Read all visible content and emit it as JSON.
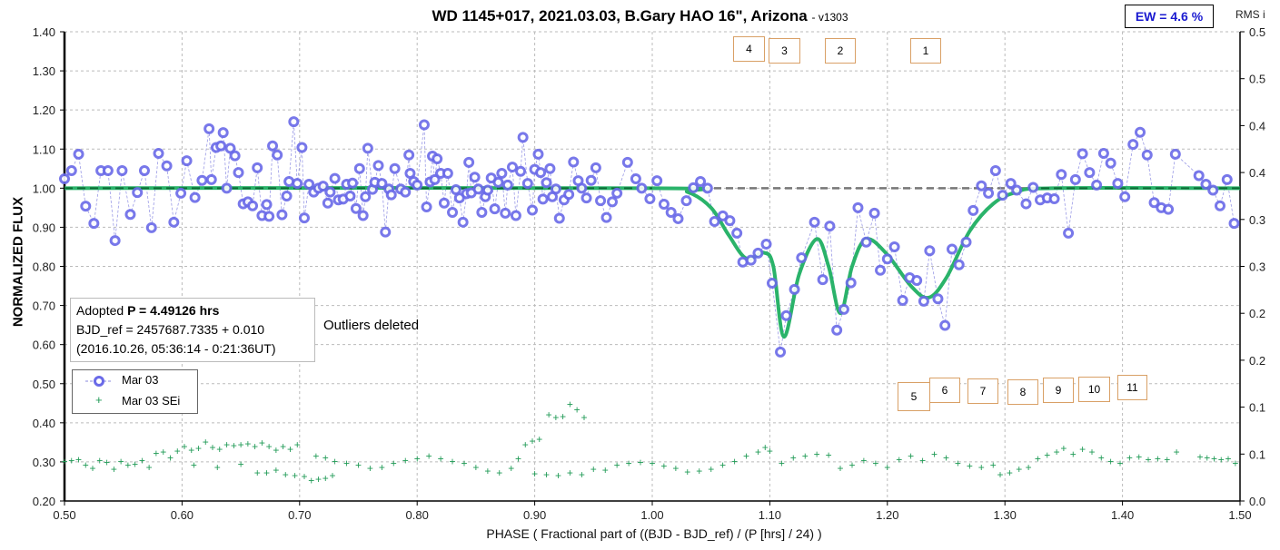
{
  "title": {
    "main": "WD 1145+017, 2021.03.03, B.Gary HAO 16\", Arizona",
    "version": "- v1303"
  },
  "ew_label": "EW = 4.6 %",
  "info": {
    "line1_prefix": "Adopted ",
    "line1_bold": "P = 4.49126 hrs",
    "line2": "BJD_ref = 2457687.7335 + 0.010",
    "line3": "(2016.10.26, 05:36:14 - 0:21:36UT)"
  },
  "outliers_note": "Outliers deleted",
  "legend": [
    {
      "label": "Mar 03"
    },
    {
      "label": "Mar 03 SEi"
    }
  ],
  "dip_labels": [
    "1",
    "2",
    "3",
    "4",
    "5",
    "6",
    "7",
    "8",
    "9",
    "10",
    "11"
  ],
  "chart_data": {
    "type": "scatter",
    "xlabel": "PHASE ( Fractional part of ((BJD - BJD_ref) / (P [hrs] / 24) )",
    "ylabel": "NORMALIZED FLUX",
    "y2label": "RMS i",
    "xlim": [
      0.5,
      1.5
    ],
    "ylim": [
      0.2,
      1.4
    ],
    "y2lim": [
      0.0,
      0.5
    ],
    "xticks": [
      "0.50",
      "0.60",
      "0.70",
      "0.80",
      "0.90",
      "1.00",
      "1.10",
      "1.20",
      "1.30",
      "1.40",
      "1.50"
    ],
    "yticks": [
      "0.20",
      "0.30",
      "0.40",
      "0.50",
      "0.60",
      "0.70",
      "0.80",
      "0.90",
      "1.00",
      "1.10",
      "1.20",
      "1.30",
      "1.40"
    ],
    "y2ticks": [
      "0.0",
      "0.1",
      "0.1",
      "0.2",
      "0.2",
      "0.3",
      "0.3",
      "0.4",
      "0.4",
      "0.5",
      "0.5"
    ],
    "grid": true,
    "colors": {
      "flux": "#6a6ae8",
      "sei": "#1f9a55",
      "fit": "#2ab36a",
      "ref": "#777777"
    },
    "reference_level": 1.0,
    "flux": [
      [
        0.5,
        1.024
      ],
      [
        0.506,
        1.045
      ],
      [
        0.512,
        1.087
      ],
      [
        0.518,
        0.954
      ],
      [
        0.525,
        0.91
      ],
      [
        0.531,
        1.045
      ],
      [
        0.537,
        1.045
      ],
      [
        0.543,
        0.866
      ],
      [
        0.549,
        1.045
      ],
      [
        0.556,
        0.933
      ],
      [
        0.562,
        0.989
      ],
      [
        0.568,
        1.045
      ],
      [
        0.574,
        0.899
      ],
      [
        0.58,
        1.089
      ],
      [
        0.587,
        1.057
      ],
      [
        0.593,
        0.913
      ],
      [
        0.599,
        0.987
      ],
      [
        0.604,
        1.07
      ],
      [
        0.611,
        0.976
      ],
      [
        0.617,
        1.02
      ],
      [
        0.623,
        1.152
      ],
      [
        0.625,
        1.022
      ],
      [
        0.629,
        1.104
      ],
      [
        0.633,
        1.108
      ],
      [
        0.635,
        1.142
      ],
      [
        0.638,
        1.0
      ],
      [
        0.641,
        1.102
      ],
      [
        0.645,
        1.083
      ],
      [
        0.648,
        1.04
      ],
      [
        0.652,
        0.96
      ],
      [
        0.656,
        0.965
      ],
      [
        0.66,
        0.955
      ],
      [
        0.664,
        1.052
      ],
      [
        0.668,
        0.93
      ],
      [
        0.672,
        0.958
      ],
      [
        0.674,
        0.928
      ],
      [
        0.677,
        1.108
      ],
      [
        0.681,
        1.085
      ],
      [
        0.685,
        0.932
      ],
      [
        0.689,
        0.98
      ],
      [
        0.691,
        1.017
      ],
      [
        0.695,
        1.17
      ],
      [
        0.698,
        1.012
      ],
      [
        0.702,
        1.104
      ],
      [
        0.704,
        0.924
      ],
      [
        0.708,
        1.01
      ],
      [
        0.712,
        0.99
      ],
      [
        0.716,
        1.0
      ],
      [
        0.72,
        1.005
      ],
      [
        0.724,
        0.962
      ],
      [
        0.726,
        0.99
      ],
      [
        0.73,
        1.025
      ],
      [
        0.733,
        0.97
      ],
      [
        0.737,
        0.972
      ],
      [
        0.74,
        1.01
      ],
      [
        0.743,
        0.98
      ],
      [
        0.745,
        1.013
      ],
      [
        0.748,
        0.948
      ],
      [
        0.751,
        1.05
      ],
      [
        0.754,
        0.93
      ],
      [
        0.756,
        0.978
      ],
      [
        0.758,
        1.102
      ],
      [
        0.762,
        0.997
      ],
      [
        0.764,
        1.015
      ],
      [
        0.767,
        1.058
      ],
      [
        0.77,
        1.012
      ],
      [
        0.773,
        0.888
      ],
      [
        0.776,
        0.998
      ],
      [
        0.778,
        0.983
      ],
      [
        0.781,
        1.05
      ],
      [
        0.786,
        0.998
      ],
      [
        0.79,
        0.99
      ],
      [
        0.793,
        1.085
      ],
      [
        0.794,
        1.038
      ],
      [
        0.797,
        1.017
      ],
      [
        0.8,
        1.008
      ],
      [
        0.806,
        1.162
      ],
      [
        0.808,
        0.952
      ],
      [
        0.811,
        1.016
      ],
      [
        0.813,
        1.082
      ],
      [
        0.815,
        1.022
      ],
      [
        0.817,
        1.075
      ],
      [
        0.82,
        1.038
      ],
      [
        0.823,
        0.962
      ],
      [
        0.826,
        1.038
      ],
      [
        0.83,
        0.938
      ],
      [
        0.833,
        0.996
      ],
      [
        0.836,
        0.975
      ],
      [
        0.839,
        0.913
      ],
      [
        0.842,
        0.986
      ],
      [
        0.844,
        1.066
      ],
      [
        0.846,
        0.988
      ],
      [
        0.849,
        1.028
      ],
      [
        0.852,
        0.998
      ],
      [
        0.855,
        0.938
      ],
      [
        0.858,
        0.978
      ],
      [
        0.86,
        0.995
      ],
      [
        0.863,
        1.026
      ],
      [
        0.866,
        0.947
      ],
      [
        0.869,
        1.015
      ],
      [
        0.872,
        1.038
      ],
      [
        0.875,
        0.936
      ],
      [
        0.877,
        1.008
      ],
      [
        0.881,
        1.054
      ],
      [
        0.884,
        0.93
      ],
      [
        0.888,
        1.043
      ],
      [
        0.89,
        1.13
      ],
      [
        0.894,
        1.012
      ],
      [
        0.898,
        0.944
      ],
      [
        0.9,
        1.048
      ],
      [
        0.903,
        1.087
      ],
      [
        0.905,
        1.04
      ],
      [
        0.907,
        0.972
      ],
      [
        0.91,
        1.014
      ],
      [
        0.913,
        1.05
      ],
      [
        0.915,
        0.978
      ],
      [
        0.918,
        0.998
      ],
      [
        0.921,
        0.923
      ],
      [
        0.925,
        0.97
      ],
      [
        0.929,
        0.984
      ],
      [
        0.933,
        1.067
      ],
      [
        0.937,
        1.019
      ],
      [
        0.94,
        1.0
      ],
      [
        0.944,
        0.975
      ],
      [
        0.948,
        1.02
      ],
      [
        0.952,
        1.052
      ],
      [
        0.956,
        0.968
      ],
      [
        0.961,
        0.925
      ],
      [
        0.966,
        0.965
      ],
      [
        0.97,
        0.987
      ],
      [
        0.979,
        1.066
      ],
      [
        0.986,
        1.024
      ],
      [
        0.991,
        1.0
      ],
      [
        0.998,
        0.973
      ],
      [
        1.004,
        1.019
      ],
      [
        1.01,
        0.959
      ],
      [
        1.016,
        0.938
      ],
      [
        1.022,
        0.922
      ],
      [
        1.029,
        0.968
      ],
      [
        1.035,
        1.001
      ],
      [
        1.041,
        1.017
      ],
      [
        1.047,
        1.0
      ],
      [
        1.053,
        0.915
      ],
      [
        1.06,
        0.929
      ],
      [
        1.066,
        0.917
      ],
      [
        1.072,
        0.885
      ],
      [
        1.077,
        0.811
      ],
      [
        1.084,
        0.816
      ],
      [
        1.09,
        0.834
      ],
      [
        1.097,
        0.857
      ],
      [
        1.102,
        0.757
      ],
      [
        1.109,
        0.581
      ],
      [
        1.114,
        0.674
      ],
      [
        1.121,
        0.741
      ],
      [
        1.127,
        0.822
      ],
      [
        1.138,
        0.913
      ],
      [
        1.145,
        0.766
      ],
      [
        1.151,
        0.903
      ],
      [
        1.157,
        0.637
      ],
      [
        1.163,
        0.69
      ],
      [
        1.169,
        0.758
      ],
      [
        1.175,
        0.95
      ],
      [
        1.182,
        0.862
      ],
      [
        1.189,
        0.936
      ],
      [
        1.194,
        0.79
      ],
      [
        1.2,
        0.819
      ],
      [
        1.206,
        0.85
      ],
      [
        1.213,
        0.713
      ],
      [
        1.219,
        0.771
      ],
      [
        1.225,
        0.764
      ],
      [
        1.231,
        0.711
      ],
      [
        1.236,
        0.84
      ],
      [
        1.243,
        0.717
      ],
      [
        1.249,
        0.649
      ],
      [
        1.255,
        0.844
      ],
      [
        1.261,
        0.804
      ],
      [
        1.267,
        0.862
      ],
      [
        1.273,
        0.943
      ],
      [
        1.28,
        1.006
      ],
      [
        1.286,
        0.987
      ],
      [
        1.292,
        1.045
      ],
      [
        1.298,
        0.982
      ],
      [
        1.305,
        1.012
      ],
      [
        1.31,
        0.995
      ],
      [
        1.318,
        0.96
      ],
      [
        1.324,
        1.002
      ],
      [
        1.33,
        0.97
      ],
      [
        1.336,
        0.975
      ],
      [
        1.342,
        0.973
      ],
      [
        1.348,
        1.035
      ],
      [
        1.354,
        0.885
      ],
      [
        1.36,
        1.022
      ],
      [
        1.366,
        1.088
      ],
      [
        1.372,
        1.04
      ],
      [
        1.378,
        1.008
      ],
      [
        1.384,
        1.089
      ],
      [
        1.39,
        1.064
      ],
      [
        1.396,
        1.012
      ],
      [
        1.402,
        0.978
      ],
      [
        1.409,
        1.112
      ],
      [
        1.415,
        1.143
      ],
      [
        1.421,
        1.085
      ],
      [
        1.427,
        0.963
      ],
      [
        1.433,
        0.95
      ],
      [
        1.439,
        0.946
      ],
      [
        1.445,
        1.087
      ],
      [
        1.465,
        1.032
      ],
      [
        1.471,
        1.01
      ],
      [
        1.477,
        0.995
      ],
      [
        1.483,
        0.955
      ],
      [
        1.489,
        1.022
      ],
      [
        1.495,
        0.91
      ]
    ],
    "fit": [
      [
        0.5,
        1.0
      ],
      [
        1.0,
        1.0
      ],
      [
        1.03,
        0.99
      ],
      [
        1.05,
        0.95
      ],
      [
        1.065,
        0.88
      ],
      [
        1.08,
        0.82
      ],
      [
        1.095,
        0.835
      ],
      [
        1.103,
        0.8
      ],
      [
        1.112,
        0.62
      ],
      [
        1.125,
        0.78
      ],
      [
        1.14,
        0.87
      ],
      [
        1.15,
        0.8
      ],
      [
        1.16,
        0.68
      ],
      [
        1.17,
        0.8
      ],
      [
        1.182,
        0.87
      ],
      [
        1.2,
        0.83
      ],
      [
        1.22,
        0.75
      ],
      [
        1.235,
        0.72
      ],
      [
        1.25,
        0.77
      ],
      [
        1.27,
        0.89
      ],
      [
        1.29,
        0.96
      ],
      [
        1.31,
        0.99
      ],
      [
        1.34,
        1.0
      ],
      [
        1.5,
        1.0
      ]
    ],
    "sei": [
      [
        0.5,
        0.042
      ],
      [
        0.506,
        0.043
      ],
      [
        0.512,
        0.044
      ],
      [
        0.518,
        0.038
      ],
      [
        0.524,
        0.035
      ],
      [
        0.53,
        0.043
      ],
      [
        0.536,
        0.041
      ],
      [
        0.542,
        0.034
      ],
      [
        0.548,
        0.042
      ],
      [
        0.554,
        0.038
      ],
      [
        0.56,
        0.039
      ],
      [
        0.566,
        0.043
      ],
      [
        0.572,
        0.036
      ],
      [
        0.578,
        0.051
      ],
      [
        0.584,
        0.052
      ],
      [
        0.59,
        0.046
      ],
      [
        0.596,
        0.053
      ],
      [
        0.602,
        0.058
      ],
      [
        0.608,
        0.054
      ],
      [
        0.614,
        0.056
      ],
      [
        0.62,
        0.063
      ],
      [
        0.626,
        0.057
      ],
      [
        0.632,
        0.055
      ],
      [
        0.638,
        0.06
      ],
      [
        0.644,
        0.059
      ],
      [
        0.65,
        0.06
      ],
      [
        0.656,
        0.061
      ],
      [
        0.662,
        0.058
      ],
      [
        0.668,
        0.062
      ],
      [
        0.674,
        0.058
      ],
      [
        0.68,
        0.054
      ],
      [
        0.686,
        0.058
      ],
      [
        0.692,
        0.055
      ],
      [
        0.698,
        0.06
      ],
      [
        0.61,
        0.038
      ],
      [
        0.63,
        0.036
      ],
      [
        0.65,
        0.039
      ],
      [
        0.664,
        0.03
      ],
      [
        0.672,
        0.03
      ],
      [
        0.68,
        0.033
      ],
      [
        0.688,
        0.028
      ],
      [
        0.696,
        0.027
      ],
      [
        0.704,
        0.026
      ],
      [
        0.71,
        0.022
      ],
      [
        0.716,
        0.023
      ],
      [
        0.722,
        0.024
      ],
      [
        0.728,
        0.027
      ],
      [
        0.714,
        0.048
      ],
      [
        0.722,
        0.046
      ],
      [
        0.73,
        0.042
      ],
      [
        0.74,
        0.04
      ],
      [
        0.75,
        0.038
      ],
      [
        0.76,
        0.035
      ],
      [
        0.77,
        0.036
      ],
      [
        0.78,
        0.04
      ],
      [
        0.79,
        0.043
      ],
      [
        0.8,
        0.045
      ],
      [
        0.81,
        0.048
      ],
      [
        0.82,
        0.045
      ],
      [
        0.83,
        0.042
      ],
      [
        0.84,
        0.04
      ],
      [
        0.85,
        0.036
      ],
      [
        0.86,
        0.032
      ],
      [
        0.87,
        0.03
      ],
      [
        0.88,
        0.035
      ],
      [
        0.886,
        0.045
      ],
      [
        0.892,
        0.06
      ],
      [
        0.898,
        0.064
      ],
      [
        0.904,
        0.066
      ],
      [
        0.912,
        0.092
      ],
      [
        0.918,
        0.089
      ],
      [
        0.924,
        0.09
      ],
      [
        0.93,
        0.103
      ],
      [
        0.936,
        0.097
      ],
      [
        0.942,
        0.089
      ],
      [
        0.9,
        0.029
      ],
      [
        0.91,
        0.028
      ],
      [
        0.92,
        0.027
      ],
      [
        0.93,
        0.03
      ],
      [
        0.94,
        0.028
      ],
      [
        0.95,
        0.034
      ],
      [
        0.96,
        0.033
      ],
      [
        0.97,
        0.038
      ],
      [
        0.98,
        0.04
      ],
      [
        0.99,
        0.041
      ],
      [
        1.0,
        0.04
      ],
      [
        1.01,
        0.037
      ],
      [
        1.02,
        0.035
      ],
      [
        1.03,
        0.031
      ],
      [
        1.04,
        0.032
      ],
      [
        1.05,
        0.034
      ],
      [
        1.06,
        0.038
      ],
      [
        1.07,
        0.042
      ],
      [
        1.08,
        0.048
      ],
      [
        1.09,
        0.052
      ],
      [
        1.096,
        0.057
      ],
      [
        1.1,
        0.053
      ],
      [
        1.11,
        0.04
      ],
      [
        1.12,
        0.046
      ],
      [
        1.13,
        0.048
      ],
      [
        1.14,
        0.05
      ],
      [
        1.15,
        0.049
      ],
      [
        1.16,
        0.035
      ],
      [
        1.17,
        0.038
      ],
      [
        1.18,
        0.043
      ],
      [
        1.19,
        0.04
      ],
      [
        1.2,
        0.036
      ],
      [
        1.21,
        0.044
      ],
      [
        1.22,
        0.048
      ],
      [
        1.23,
        0.043
      ],
      [
        1.24,
        0.05
      ],
      [
        1.25,
        0.046
      ],
      [
        1.26,
        0.04
      ],
      [
        1.27,
        0.037
      ],
      [
        1.28,
        0.036
      ],
      [
        1.29,
        0.038
      ],
      [
        1.296,
        0.028
      ],
      [
        1.304,
        0.03
      ],
      [
        1.312,
        0.034
      ],
      [
        1.32,
        0.036
      ],
      [
        1.328,
        0.045
      ],
      [
        1.336,
        0.049
      ],
      [
        1.344,
        0.052
      ],
      [
        1.35,
        0.056
      ],
      [
        1.358,
        0.05
      ],
      [
        1.366,
        0.055
      ],
      [
        1.374,
        0.052
      ],
      [
        1.382,
        0.046
      ],
      [
        1.39,
        0.042
      ],
      [
        1.398,
        0.04
      ],
      [
        1.406,
        0.046
      ],
      [
        1.414,
        0.047
      ],
      [
        1.422,
        0.044
      ],
      [
        1.43,
        0.045
      ],
      [
        1.438,
        0.044
      ],
      [
        1.446,
        0.052
      ],
      [
        1.466,
        0.047
      ],
      [
        1.472,
        0.046
      ],
      [
        1.478,
        0.045
      ],
      [
        1.484,
        0.044
      ],
      [
        1.49,
        0.045
      ],
      [
        1.496,
        0.04
      ]
    ]
  }
}
